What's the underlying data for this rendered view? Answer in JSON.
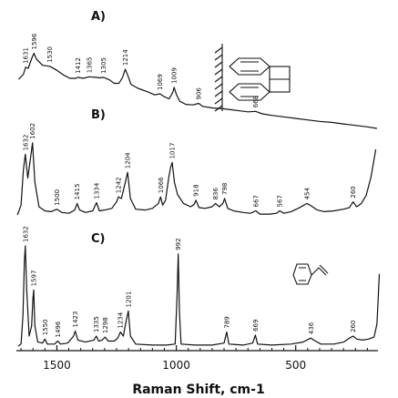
{
  "chart_data": {
    "type": "line",
    "xlabel": "Raman Shift, cm-1",
    "x_ticks": [
      {
        "value": 1500,
        "label": "1500"
      },
      {
        "value": 1000,
        "label": "1000"
      },
      {
        "value": 500,
        "label": "500"
      }
    ],
    "xlim": [
      1700,
      110
    ],
    "series": [
      {
        "panel": "A)",
        "peaks": [
          {
            "x": 1631,
            "label": "1631"
          },
          {
            "x": 1596,
            "label": "1596"
          },
          {
            "x": 1530,
            "label": "1530"
          },
          {
            "x": 1412,
            "label": "1412"
          },
          {
            "x": 1365,
            "label": "1365"
          },
          {
            "x": 1305,
            "label": "1305"
          },
          {
            "x": 1214,
            "label": "1214"
          },
          {
            "x": 1069,
            "label": "1069"
          },
          {
            "x": 1009,
            "label": "1009"
          },
          {
            "x": 906,
            "label": "906"
          },
          {
            "x": 668,
            "label": "668"
          }
        ],
        "curve": [
          [
            1660,
            0.38
          ],
          [
            1640,
            0.48
          ],
          [
            1631,
            0.62
          ],
          [
            1620,
            0.6
          ],
          [
            1605,
            0.8
          ],
          [
            1596,
            0.9
          ],
          [
            1585,
            0.78
          ],
          [
            1560,
            0.66
          ],
          [
            1530,
            0.64
          ],
          [
            1500,
            0.56
          ],
          [
            1470,
            0.46
          ],
          [
            1445,
            0.4
          ],
          [
            1420,
            0.4
          ],
          [
            1412,
            0.42
          ],
          [
            1390,
            0.4
          ],
          [
            1365,
            0.43
          ],
          [
            1340,
            0.42
          ],
          [
            1320,
            0.41
          ],
          [
            1305,
            0.42
          ],
          [
            1280,
            0.37
          ],
          [
            1260,
            0.3
          ],
          [
            1240,
            0.3
          ],
          [
            1225,
            0.42
          ],
          [
            1214,
            0.58
          ],
          [
            1203,
            0.46
          ],
          [
            1190,
            0.28
          ],
          [
            1160,
            0.2
          ],
          [
            1120,
            0.13
          ],
          [
            1090,
            0.07
          ],
          [
            1069,
            0.09
          ],
          [
            1050,
            0.03
          ],
          [
            1030,
            -0.01
          ],
          [
            1015,
            0.12
          ],
          [
            1009,
            0.22
          ],
          [
            1000,
            0.08
          ],
          [
            985,
            -0.06
          ],
          [
            960,
            -0.12
          ],
          [
            930,
            -0.13
          ],
          [
            906,
            -0.1
          ],
          [
            890,
            -0.16
          ],
          [
            850,
            -0.19
          ],
          [
            800,
            -0.21
          ],
          [
            750,
            -0.24
          ],
          [
            700,
            -0.27
          ],
          [
            668,
            -0.26
          ],
          [
            640,
            -0.31
          ],
          [
            600,
            -0.34
          ],
          [
            550,
            -0.37
          ],
          [
            500,
            -0.4
          ],
          [
            450,
            -0.43
          ],
          [
            400,
            -0.46
          ],
          [
            350,
            -0.48
          ],
          [
            300,
            -0.51
          ],
          [
            250,
            -0.54
          ],
          [
            200,
            -0.57
          ],
          [
            160,
            -0.6
          ]
        ]
      },
      {
        "panel": "B)",
        "peaks": [
          {
            "x": 1632,
            "label": "1632"
          },
          {
            "x": 1602,
            "label": "1602"
          },
          {
            "x": 1500,
            "label": "1500"
          },
          {
            "x": 1415,
            "label": "1415"
          },
          {
            "x": 1334,
            "label": "1334"
          },
          {
            "x": 1242,
            "label": "1242"
          },
          {
            "x": 1204,
            "label": "1204"
          },
          {
            "x": 1066,
            "label": "1066"
          },
          {
            "x": 1017,
            "label": "1017"
          },
          {
            "x": 918,
            "label": "918"
          },
          {
            "x": 836,
            "label": "836"
          },
          {
            "x": 798,
            "label": "798"
          },
          {
            "x": 667,
            "label": "667"
          },
          {
            "x": 567,
            "label": "567"
          },
          {
            "x": 454,
            "label": "454"
          },
          {
            "x": 260,
            "label": "260"
          }
        ],
        "curve": [
          [
            1665,
            0.0
          ],
          [
            1650,
            0.12
          ],
          [
            1640,
            0.55
          ],
          [
            1632,
            0.74
          ],
          [
            1622,
            0.45
          ],
          [
            1612,
            0.66
          ],
          [
            1602,
            0.88
          ],
          [
            1592,
            0.4
          ],
          [
            1575,
            0.1
          ],
          [
            1550,
            0.05
          ],
          [
            1525,
            0.04
          ],
          [
            1500,
            0.07
          ],
          [
            1480,
            0.03
          ],
          [
            1450,
            0.02
          ],
          [
            1425,
            0.06
          ],
          [
            1415,
            0.14
          ],
          [
            1405,
            0.06
          ],
          [
            1380,
            0.03
          ],
          [
            1350,
            0.05
          ],
          [
            1334,
            0.15
          ],
          [
            1322,
            0.05
          ],
          [
            1300,
            0.06
          ],
          [
            1270,
            0.08
          ],
          [
            1250,
            0.16
          ],
          [
            1242,
            0.22
          ],
          [
            1230,
            0.2
          ],
          [
            1215,
            0.38
          ],
          [
            1204,
            0.52
          ],
          [
            1192,
            0.2
          ],
          [
            1170,
            0.07
          ],
          [
            1130,
            0.06
          ],
          [
            1100,
            0.08
          ],
          [
            1075,
            0.14
          ],
          [
            1066,
            0.22
          ],
          [
            1057,
            0.12
          ],
          [
            1045,
            0.18
          ],
          [
            1032,
            0.45
          ],
          [
            1024,
            0.58
          ],
          [
            1017,
            0.64
          ],
          [
            1008,
            0.4
          ],
          [
            995,
            0.25
          ],
          [
            970,
            0.14
          ],
          [
            940,
            0.1
          ],
          [
            925,
            0.13
          ],
          [
            918,
            0.18
          ],
          [
            905,
            0.09
          ],
          [
            880,
            0.08
          ],
          [
            850,
            0.1
          ],
          [
            836,
            0.14
          ],
          [
            820,
            0.1
          ],
          [
            805,
            0.14
          ],
          [
            798,
            0.2
          ],
          [
            785,
            0.08
          ],
          [
            760,
            0.05
          ],
          [
            720,
            0.03
          ],
          [
            690,
            0.02
          ],
          [
            667,
            0.05
          ],
          [
            650,
            0.01
          ],
          [
            610,
            0.01
          ],
          [
            580,
            0.02
          ],
          [
            567,
            0.05
          ],
          [
            550,
            0.02
          ],
          [
            520,
            0.04
          ],
          [
            490,
            0.08
          ],
          [
            465,
            0.12
          ],
          [
            454,
            0.14
          ],
          [
            440,
            0.12
          ],
          [
            410,
            0.06
          ],
          [
            380,
            0.04
          ],
          [
            340,
            0.05
          ],
          [
            300,
            0.07
          ],
          [
            275,
            0.09
          ],
          [
            260,
            0.16
          ],
          [
            245,
            0.1
          ],
          [
            225,
            0.14
          ],
          [
            205,
            0.24
          ],
          [
            185,
            0.46
          ],
          [
            165,
            0.8
          ]
        ]
      },
      {
        "panel": "C)",
        "peaks": [
          {
            "x": 1632,
            "label": "1632"
          },
          {
            "x": 1597,
            "label": "1597"
          },
          {
            "x": 1550,
            "label": "1550"
          },
          {
            "x": 1496,
            "label": "1496"
          },
          {
            "x": 1423,
            "label": "1423"
          },
          {
            "x": 1335,
            "label": "1335"
          },
          {
            "x": 1298,
            "label": "1298"
          },
          {
            "x": 1234,
            "label": "1234"
          },
          {
            "x": 1201,
            "label": "1201"
          },
          {
            "x": 992,
            "label": "992"
          },
          {
            "x": 789,
            "label": "789"
          },
          {
            "x": 669,
            "label": "669"
          },
          {
            "x": 436,
            "label": "436"
          },
          {
            "x": 260,
            "label": "260"
          }
        ],
        "curve": [
          [
            1662,
            0.0
          ],
          [
            1650,
            0.02
          ],
          [
            1642,
            0.3
          ],
          [
            1636,
            0.85
          ],
          [
            1632,
            1.0
          ],
          [
            1626,
            0.55
          ],
          [
            1616,
            0.1
          ],
          [
            1606,
            0.2
          ],
          [
            1600,
            0.48
          ],
          [
            1597,
            0.56
          ],
          [
            1592,
            0.2
          ],
          [
            1580,
            0.04
          ],
          [
            1560,
            0.03
          ],
          [
            1550,
            0.07
          ],
          [
            1540,
            0.02
          ],
          [
            1510,
            0.02
          ],
          [
            1496,
            0.05
          ],
          [
            1485,
            0.02
          ],
          [
            1455,
            0.03
          ],
          [
            1430,
            0.1
          ],
          [
            1423,
            0.15
          ],
          [
            1412,
            0.06
          ],
          [
            1380,
            0.04
          ],
          [
            1345,
            0.06
          ],
          [
            1335,
            0.1
          ],
          [
            1325,
            0.05
          ],
          [
            1310,
            0.06
          ],
          [
            1298,
            0.09
          ],
          [
            1285,
            0.05
          ],
          [
            1260,
            0.05
          ],
          [
            1245,
            0.08
          ],
          [
            1234,
            0.14
          ],
          [
            1222,
            0.1
          ],
          [
            1210,
            0.25
          ],
          [
            1201,
            0.35
          ],
          [
            1192,
            0.1
          ],
          [
            1170,
            0.02
          ],
          [
            1100,
            0.01
          ],
          [
            1040,
            0.01
          ],
          [
            1005,
            0.02
          ],
          [
            997,
            0.5
          ],
          [
            992,
            0.92
          ],
          [
            987,
            0.35
          ],
          [
            980,
            0.02
          ],
          [
            920,
            0.01
          ],
          [
            850,
            0.01
          ],
          [
            800,
            0.03
          ],
          [
            789,
            0.14
          ],
          [
            780,
            0.02
          ],
          [
            720,
            0.01
          ],
          [
            680,
            0.03
          ],
          [
            669,
            0.11
          ],
          [
            660,
            0.02
          ],
          [
            600,
            0.01
          ],
          [
            520,
            0.02
          ],
          [
            470,
            0.04
          ],
          [
            445,
            0.07
          ],
          [
            436,
            0.08
          ],
          [
            425,
            0.06
          ],
          [
            395,
            0.02
          ],
          [
            340,
            0.02
          ],
          [
            300,
            0.04
          ],
          [
            275,
            0.08
          ],
          [
            260,
            0.1
          ],
          [
            245,
            0.07
          ],
          [
            220,
            0.06
          ],
          [
            195,
            0.07
          ],
          [
            172,
            0.09
          ],
          [
            160,
            0.22
          ],
          [
            150,
            0.72
          ]
        ]
      }
    ]
  }
}
